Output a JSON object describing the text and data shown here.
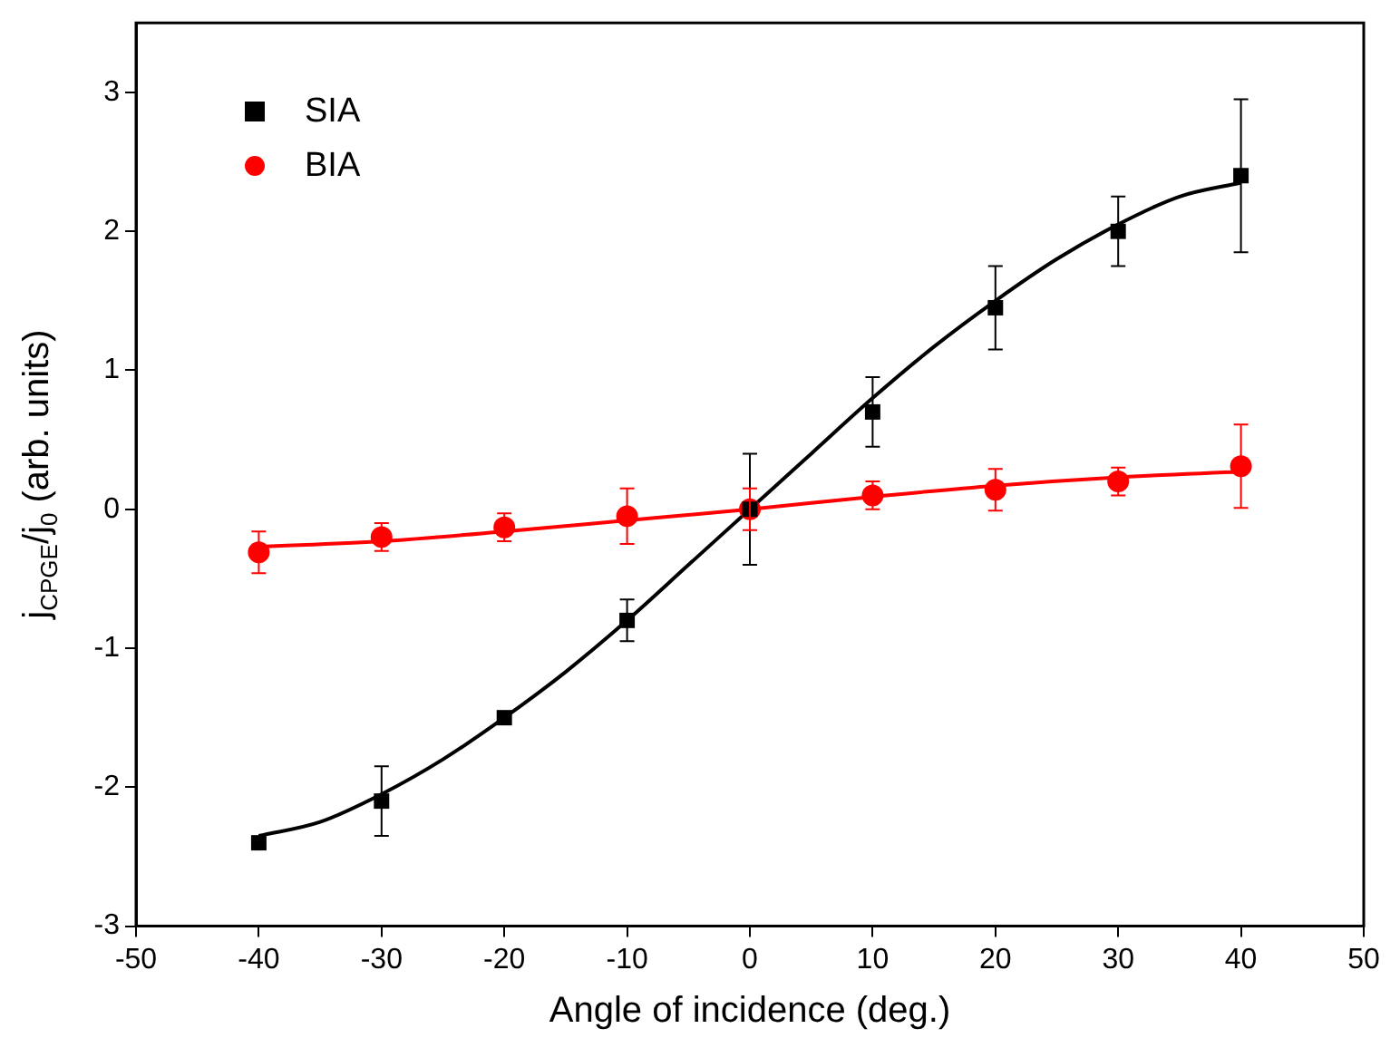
{
  "chart_data": {
    "type": "scatter",
    "xlabel": "Angle of incidence (deg.)",
    "ylabel": "j$_{CPGE}$/j$_{0}$ (arb. units)",
    "xlim": [
      -50,
      50
    ],
    "xticks": [
      -50,
      -40,
      -30,
      -20,
      -10,
      0,
      10,
      20,
      30,
      40,
      50
    ],
    "ylim": [
      -3,
      3.5
    ],
    "yticks": [
      -3,
      -2,
      -1,
      0,
      1,
      2,
      3
    ],
    "grid": false,
    "legend": "top left",
    "series": [
      {
        "name": "SIA",
        "color": "#000000",
        "marker": "square",
        "x": [
          -40,
          -30,
          -20,
          -10,
          0,
          10,
          20,
          30,
          40
        ],
        "values": [
          -2.4,
          -2.1,
          -1.5,
          -0.8,
          0,
          0.7,
          1.45,
          2.0,
          2.4
        ],
        "errors": [
          null,
          0.25,
          null,
          0.15,
          0.4,
          0.25,
          0.3,
          0.25,
          0.55
        ]
      },
      {
        "name": "BIA",
        "color": "#ff0000",
        "marker": "circle",
        "x": [
          -40,
          -30,
          -20,
          -10,
          0,
          10,
          20,
          30,
          40
        ],
        "values": [
          -0.31,
          -0.2,
          -0.13,
          -0.05,
          0,
          0.1,
          0.14,
          0.2,
          0.31
        ],
        "errors": [
          0.15,
          0.1,
          0.1,
          0.2,
          0.15,
          0.1,
          0.15,
          0.1,
          0.3
        ]
      },
      {
        "type": "line",
        "color": "#000000",
        "marker": "none",
        "x": [
          -40,
          -35,
          -30,
          -25,
          -20,
          -15,
          -10,
          -5,
          0,
          5,
          10,
          15,
          20,
          25,
          30,
          35,
          40
        ],
        "values": [
          -2.35,
          -2.25,
          -2.05,
          -1.8,
          -1.5,
          -1.17,
          -0.8,
          -0.4,
          0,
          0.4,
          0.8,
          1.17,
          1.5,
          1.8,
          2.05,
          2.25,
          2.35
        ]
      },
      {
        "type": "line",
        "color": "#ff0000",
        "marker": "none",
        "x": [
          -40,
          -30,
          -20,
          -10,
          0,
          10,
          20,
          30,
          40
        ],
        "values": [
          -0.27,
          -0.23,
          -0.16,
          -0.08,
          0,
          0.09,
          0.17,
          0.23,
          0.27
        ]
      }
    ]
  }
}
